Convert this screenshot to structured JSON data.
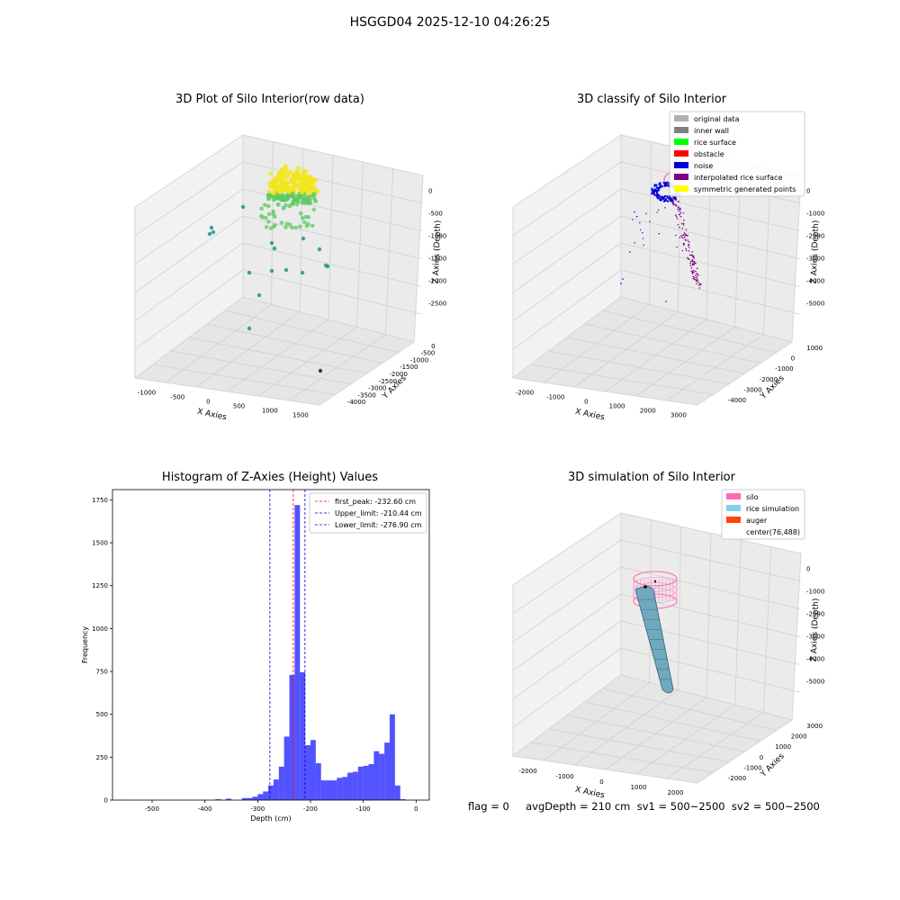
{
  "suptitle": "HSGGD04 2025-12-10 04:26:25",
  "footer": "flag = 0     avgDepth = 210 cm  sv1 = 500~2500  sv2 = 500~2500",
  "chart_data": [
    {
      "type": "scatter3d",
      "title": "3D Plot of Silo Interior(row data)",
      "xlabel": "X Axies",
      "ylabel": "Y Axies",
      "zlabel": "Z Axies (Depth)",
      "x_ticks": [
        "-1000",
        "-500",
        "0",
        "500",
        "1000",
        "1500"
      ],
      "y_ticks": [
        "0",
        "-500",
        "-1000",
        "-1500",
        "-2000",
        "-2500",
        "-3000",
        "-3500",
        "-4000"
      ],
      "z_ticks": [
        "0",
        "-500",
        "-1000",
        "-1500",
        "-2000",
        "-2500"
      ],
      "colors": {
        "high": "#f2e61a",
        "mid": "#5ec962",
        "low": "#21918c",
        "deep": "#440154"
      }
    },
    {
      "type": "scatter3d",
      "title": "3D classify of Silo Interior",
      "xlabel": "X Axies",
      "ylabel": "Y Axies",
      "zlabel": "Z Axies (Depth)",
      "x_ticks": [
        "-2000",
        "-1000",
        "0",
        "1000",
        "2000",
        "3000"
      ],
      "y_ticks": [
        "1000",
        "0",
        "-1000",
        "-2000",
        "-3000",
        "-4000"
      ],
      "z_ticks": [
        "0",
        "-1000",
        "-2000",
        "-3000",
        "-4000",
        "-5000"
      ],
      "legend": [
        {
          "label": "original data",
          "color": "#b0b0b0"
        },
        {
          "label": "inner wall",
          "color": "#808080"
        },
        {
          "label": "rice surface",
          "color": "#00ff00"
        },
        {
          "label": "obstacle",
          "color": "#ff0000"
        },
        {
          "label": "noise",
          "color": "#0000dd"
        },
        {
          "label": "interpolated rice surface",
          "color": "#800080"
        },
        {
          "label": "symmetric generated points",
          "color": "#ffff00"
        }
      ]
    },
    {
      "type": "bar",
      "title": "Histogram of Z-Axies (Height) Values",
      "xlabel": "Depth (cm)",
      "ylabel": "Frequency",
      "xlim": [
        -575,
        25
      ],
      "ylim": [
        0,
        1810
      ],
      "x_ticks": [
        -500,
        -400,
        -300,
        -200,
        -100,
        0
      ],
      "y_ticks": [
        0,
        250,
        500,
        750,
        1000,
        1250,
        1500,
        1750
      ],
      "bin_width": 10,
      "bin_starts": [
        -560,
        -550,
        -540,
        -530,
        -520,
        -510,
        -500,
        -490,
        -480,
        -470,
        -460,
        -450,
        -440,
        -430,
        -420,
        -410,
        -400,
        -390,
        -380,
        -370,
        -360,
        -350,
        -340,
        -330,
        -320,
        -310,
        -300,
        -290,
        -280,
        -270,
        -260,
        -250,
        -240,
        -230,
        -220,
        -210,
        -200,
        -190,
        -180,
        -170,
        -160,
        -150,
        -140,
        -130,
        -120,
        -110,
        -100,
        -90,
        -80,
        -70,
        -60,
        -50,
        -40,
        -30,
        -20,
        -10
      ],
      "values": [
        1,
        0,
        0,
        0,
        0,
        0,
        0,
        0,
        0,
        0,
        0,
        0,
        0,
        0,
        0,
        0,
        0,
        0,
        5,
        0,
        8,
        0,
        0,
        12,
        12,
        20,
        35,
        50,
        85,
        120,
        195,
        370,
        730,
        1720,
        745,
        320,
        350,
        215,
        115,
        115,
        115,
        130,
        135,
        160,
        165,
        195,
        200,
        210,
        285,
        270,
        335,
        500,
        85,
        5,
        0,
        0
      ],
      "bar_color": "#0000ff",
      "lines": [
        {
          "label": "first_peak: -232.60 cm",
          "x": -232.6,
          "color": "#ff0000"
        },
        {
          "label": "Upper_limit: -210.44 cm",
          "x": -210.44,
          "color": "#0000cc"
        },
        {
          "label": "Lower_limit: -276.90 cm",
          "x": -276.9,
          "color": "#0000cc"
        }
      ],
      "legend_position": "top-right"
    },
    {
      "type": "surface3d",
      "title": "3D simulation of Silo Interior",
      "xlabel": "X Axies",
      "ylabel": "Y Axies",
      "zlabel": "Z Axies (Depth)",
      "x_ticks": [
        "-2000",
        "-1000",
        "0",
        "1000",
        "2000"
      ],
      "y_ticks": [
        "3000",
        "2000",
        "1000",
        "0",
        "-1000",
        "-2000"
      ],
      "z_ticks": [
        "0",
        "-1000",
        "-2000",
        "-3000",
        "-4000",
        "-5000"
      ],
      "legend": [
        {
          "label": "silo",
          "color": "#ff69b4"
        },
        {
          "label": "rice simulation",
          "color": "#87ceeb"
        },
        {
          "label": "auger",
          "color": "#ff4500"
        },
        {
          "label": "center(76,488)",
          "color": "#ffffff"
        }
      ]
    }
  ]
}
